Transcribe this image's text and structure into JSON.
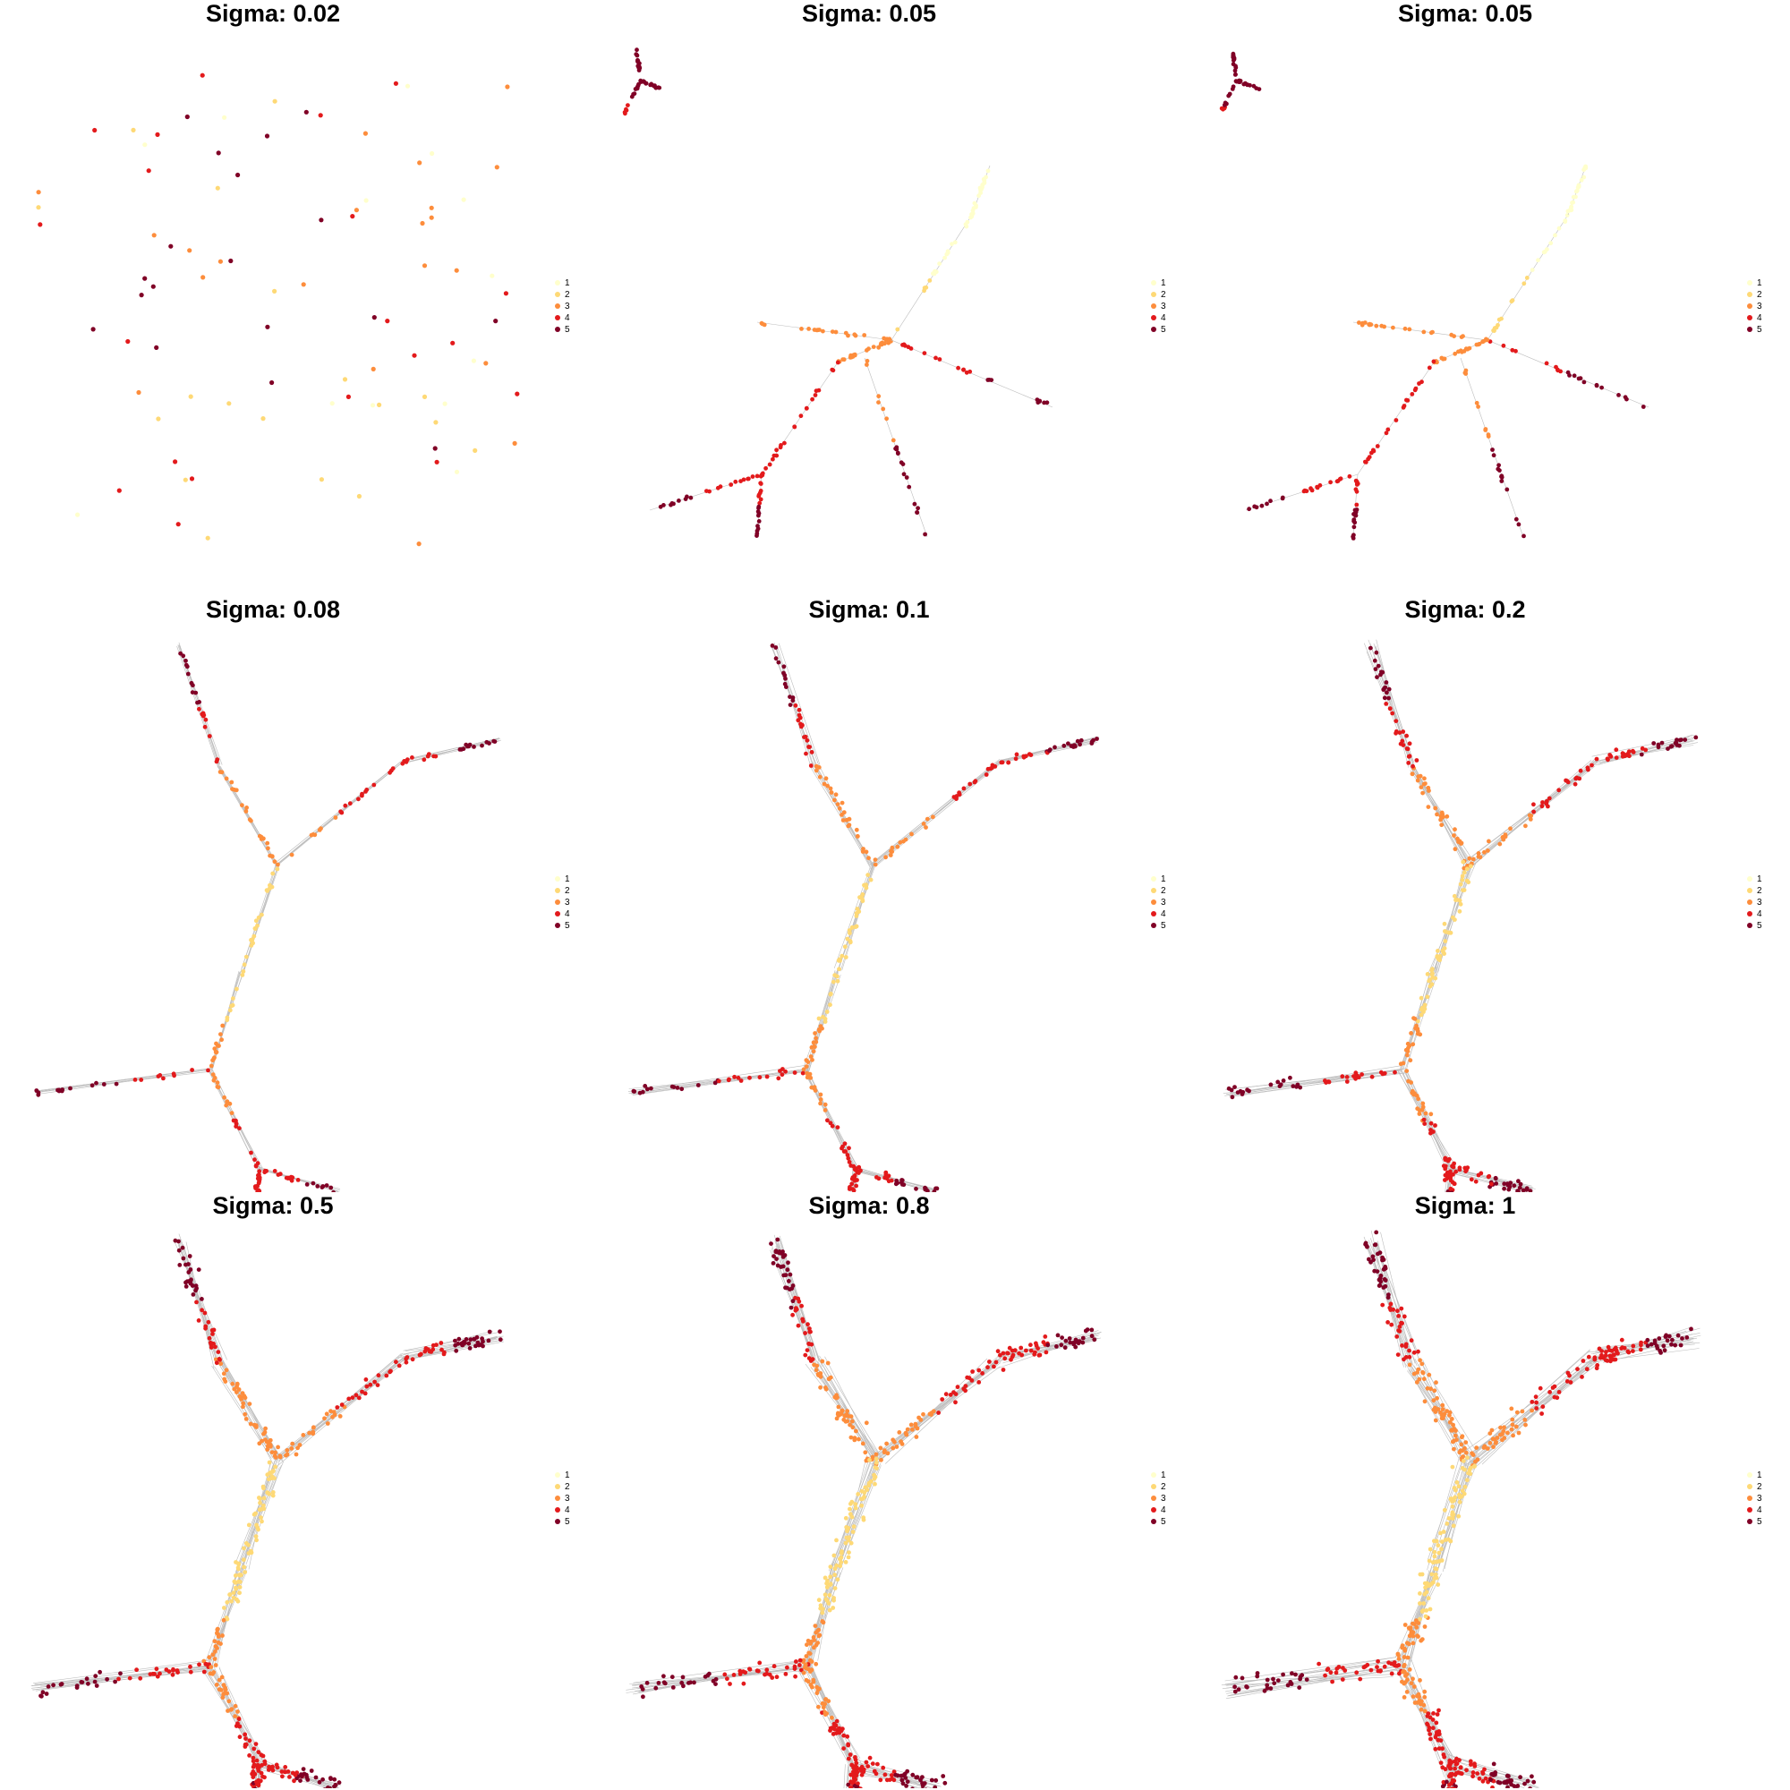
{
  "chart_data": [
    {
      "type": "scatter",
      "title": "Sigma:  0.02",
      "layout": "scattered",
      "legend": [
        "1",
        "2",
        "3",
        "4",
        "5"
      ],
      "legend_placement": "right"
    },
    {
      "type": "scatter",
      "title": "Sigma:  0.05",
      "layout": "tree-separated",
      "legend": [
        "1",
        "2",
        "3",
        "4",
        "5"
      ],
      "legend_placement": "right"
    },
    {
      "type": "scatter",
      "title": "Sigma:  0.05",
      "layout": "tree-separated",
      "legend": [
        "1",
        "2",
        "3",
        "4",
        "5"
      ],
      "legend_placement": "right"
    },
    {
      "type": "scatter",
      "title": "Sigma:  0.08",
      "layout": "trajectory",
      "legend": [
        "1",
        "2",
        "3",
        "4",
        "5"
      ],
      "legend_placement": "right"
    },
    {
      "type": "scatter",
      "title": "Sigma:  0.1",
      "layout": "trajectory",
      "legend": [
        "1",
        "2",
        "3",
        "4",
        "5"
      ],
      "legend_placement": "right"
    },
    {
      "type": "scatter",
      "title": "Sigma:  0.2",
      "layout": "trajectory",
      "legend": [
        "1",
        "2",
        "3",
        "4",
        "5"
      ],
      "legend_placement": "right"
    },
    {
      "type": "scatter",
      "title": "Sigma:  0.5",
      "layout": "trajectory",
      "legend": [
        "1",
        "2",
        "3",
        "4",
        "5"
      ],
      "legend_placement": "right"
    },
    {
      "type": "scatter",
      "title": "Sigma:  0.8",
      "layout": "trajectory",
      "legend": [
        "1",
        "2",
        "3",
        "4",
        "5"
      ],
      "legend_placement": "right"
    },
    {
      "type": "scatter",
      "title": "Sigma:  1",
      "layout": "trajectory",
      "legend": [
        "1",
        "2",
        "3",
        "4",
        "5"
      ],
      "legend_placement": "right"
    }
  ],
  "colors": {
    "1": "#ffffcc",
    "2": "#fed976",
    "3": "#fd8d3c",
    "4": "#e31a1c",
    "5": "#800026",
    "edge": "#bdbdbd"
  }
}
